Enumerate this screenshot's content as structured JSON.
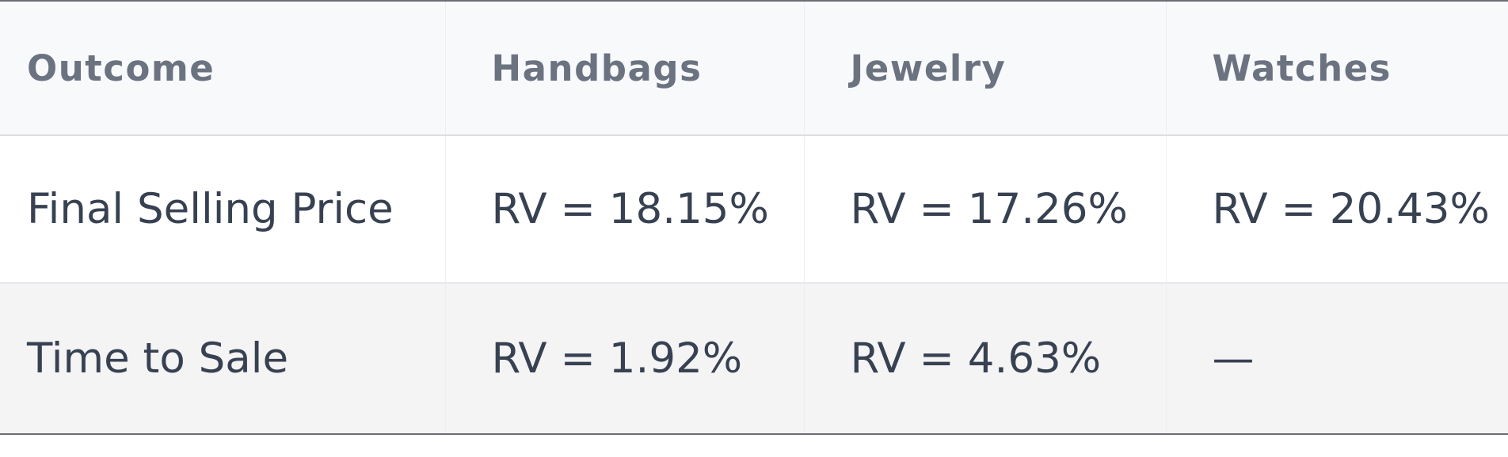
{
  "table": {
    "columns": [
      "Outcome",
      "Handbags",
      "Jewelry",
      "Watches"
    ],
    "rows": [
      {
        "outcome": "Final Selling Price",
        "handbags": "RV = 18.15%",
        "jewelry": "RV = 17.26%",
        "watches": "RV = 20.43%"
      },
      {
        "outcome": "Time to Sale",
        "handbags": "RV = 1.92%",
        "jewelry": "RV = 4.63%",
        "watches": "—"
      }
    ]
  },
  "colors": {
    "header_bg": "#f8f9fb",
    "header_text": "#6b7280",
    "body_text": "#374151",
    "alt_row_bg": "#f4f4f5",
    "border_dark": "#6b6e72"
  }
}
